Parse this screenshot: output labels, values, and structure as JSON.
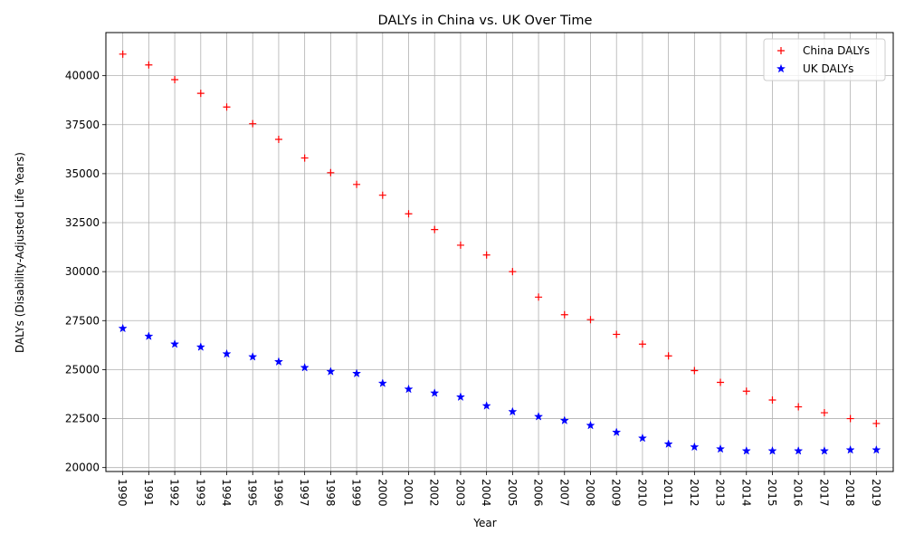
{
  "chart_data": {
    "type": "scatter",
    "title": "DALYs in China vs. UK Over Time",
    "xlabel": "Year",
    "ylabel": "DALYs (Disability-Adjusted Life Years)",
    "x": [
      1990,
      1991,
      1992,
      1993,
      1994,
      1995,
      1996,
      1997,
      1998,
      1999,
      2000,
      2001,
      2002,
      2003,
      2004,
      2005,
      2006,
      2007,
      2008,
      2009,
      2010,
      2011,
      2012,
      2013,
      2014,
      2015,
      2016,
      2017,
      2018,
      2019
    ],
    "xticks": [
      "1990",
      "1991",
      "1992",
      "1993",
      "1994",
      "1995",
      "1996",
      "1997",
      "1998",
      "1999",
      "2000",
      "2001",
      "2002",
      "2003",
      "2004",
      "2005",
      "2006",
      "2007",
      "2008",
      "2009",
      "2010",
      "2011",
      "2012",
      "2013",
      "2014",
      "2015",
      "2016",
      "2017",
      "2018",
      "2019"
    ],
    "xlim": [
      1989.35,
      2019.65
    ],
    "ylim": [
      19800,
      42200
    ],
    "yticks": [
      20000,
      22500,
      25000,
      27500,
      30000,
      32500,
      35000,
      37500,
      40000
    ],
    "ytick_labels": [
      "20000",
      "22500",
      "25000",
      "27500",
      "30000",
      "32500",
      "35000",
      "37500",
      "40000"
    ],
    "grid": true,
    "legend_position": "top-right",
    "series": [
      {
        "name": "China DALYs",
        "marker": "plus",
        "color": "#ff0000",
        "values": [
          41100,
          40550,
          39800,
          39100,
          38400,
          37550,
          36750,
          35800,
          35050,
          34450,
          33900,
          32950,
          32150,
          31350,
          30850,
          30000,
          28700,
          27800,
          27550,
          26800,
          26300,
          25700,
          24950,
          24350,
          23900,
          23450,
          23100,
          22800,
          22500,
          22250
        ]
      },
      {
        "name": "UK DALYs",
        "marker": "star",
        "color": "#0000ff",
        "values": [
          27100,
          26700,
          26300,
          26150,
          25800,
          25650,
          25400,
          25100,
          24900,
          24800,
          24300,
          24000,
          23800,
          23600,
          23150,
          22850,
          22600,
          22400,
          22150,
          21800,
          21500,
          21200,
          21050,
          20950,
          20850,
          20850,
          20850,
          20850,
          20900,
          20900
        ]
      }
    ]
  }
}
